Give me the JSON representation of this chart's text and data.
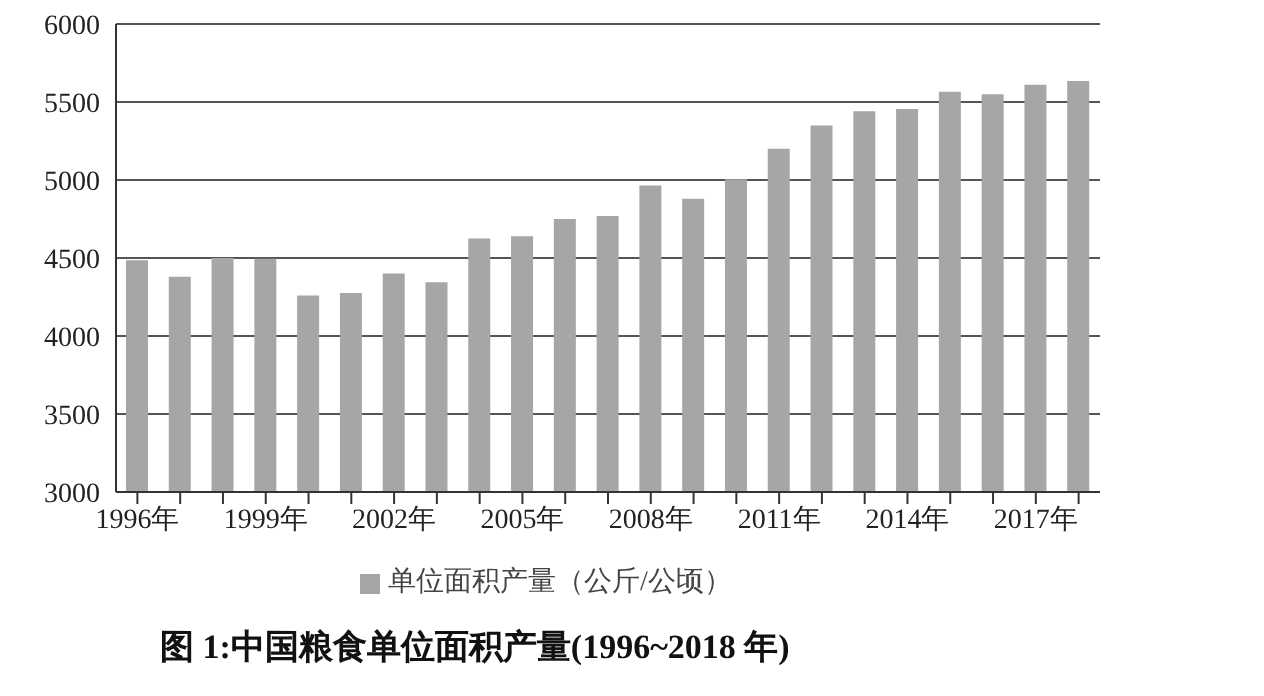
{
  "chart_data": {
    "type": "bar",
    "title": "图 1:中国粮食单位面积产量(1996~2018 年)",
    "categories": [
      "1996年",
      null,
      null,
      "1999年",
      null,
      null,
      "2002年",
      null,
      null,
      "2005年",
      null,
      null,
      "2008年",
      null,
      null,
      "2011年",
      null,
      null,
      "2014年",
      null,
      null,
      "2017年",
      null
    ],
    "series": [
      {
        "name": "单位面积产量（公斤/公顷）",
        "color": "#a6a6a6",
        "values": [
          4485,
          4380,
          4500,
          4495,
          4260,
          4275,
          4400,
          4345,
          4625,
          4640,
          4750,
          4770,
          4965,
          4880,
          5005,
          5200,
          5350,
          5440,
          5455,
          5565,
          5550,
          5610,
          5635
        ]
      }
    ],
    "ylim": [
      3000,
      6000
    ],
    "yticks": [
      3000,
      3500,
      4000,
      4500,
      5000,
      5500,
      6000
    ],
    "grid": "y",
    "legend": "bottom"
  }
}
